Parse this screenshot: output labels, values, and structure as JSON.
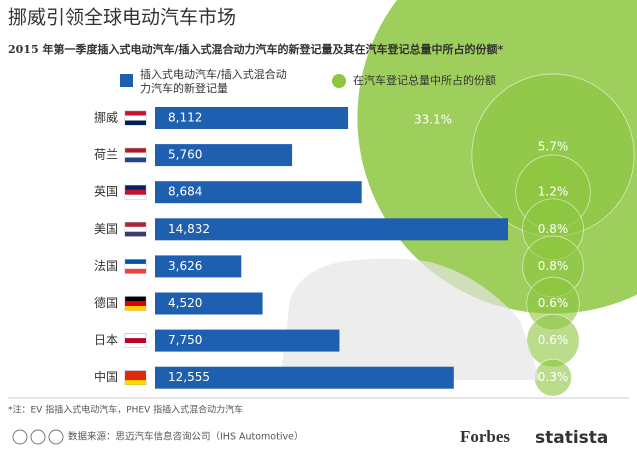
{
  "chart_data": {
    "type": "bar",
    "title": "挪威引领全球电动汽车市场",
    "subtitle": "2015 年第一季度插入式电动汽车/插入式混合动力汽车的新登记量及其在汽车登记总量中所占的份额*",
    "categories": [
      "挪威",
      "荷兰",
      "英国",
      "美国",
      "法国",
      "德国",
      "日本",
      "中国"
    ],
    "series": [
      {
        "name": "插入式电动汽车/插入式混合动力汽车的新登记量",
        "color": "#1f5fb0",
        "values": [
          8112,
          5760,
          8684,
          14832,
          3626,
          4520,
          7750,
          12555
        ],
        "value_labels": [
          "8,112",
          "5,760",
          "8,684",
          "14,832",
          "3,626",
          "4,520",
          "7,750",
          "12,555"
        ]
      },
      {
        "name": "在汽车登记总量中所占的份额",
        "color": "#8dc63f",
        "values": [
          33.1,
          5.7,
          1.2,
          0.8,
          0.8,
          0.6,
          0.6,
          0.3
        ],
        "value_labels": [
          "33.1%",
          "5.7%",
          "1.2%",
          "0.8%",
          "0.8%",
          "0.6%",
          "0.6%",
          "0.3%"
        ]
      }
    ]
  },
  "footer": {
    "note": "*注：EV 指插入式电动汽车，PHEV 指插入式混合动力汽车",
    "source": "数据来源：思迈汽车信息咨询公司（IHS Automotive）",
    "brands": [
      "Forbes",
      "statista"
    ]
  }
}
